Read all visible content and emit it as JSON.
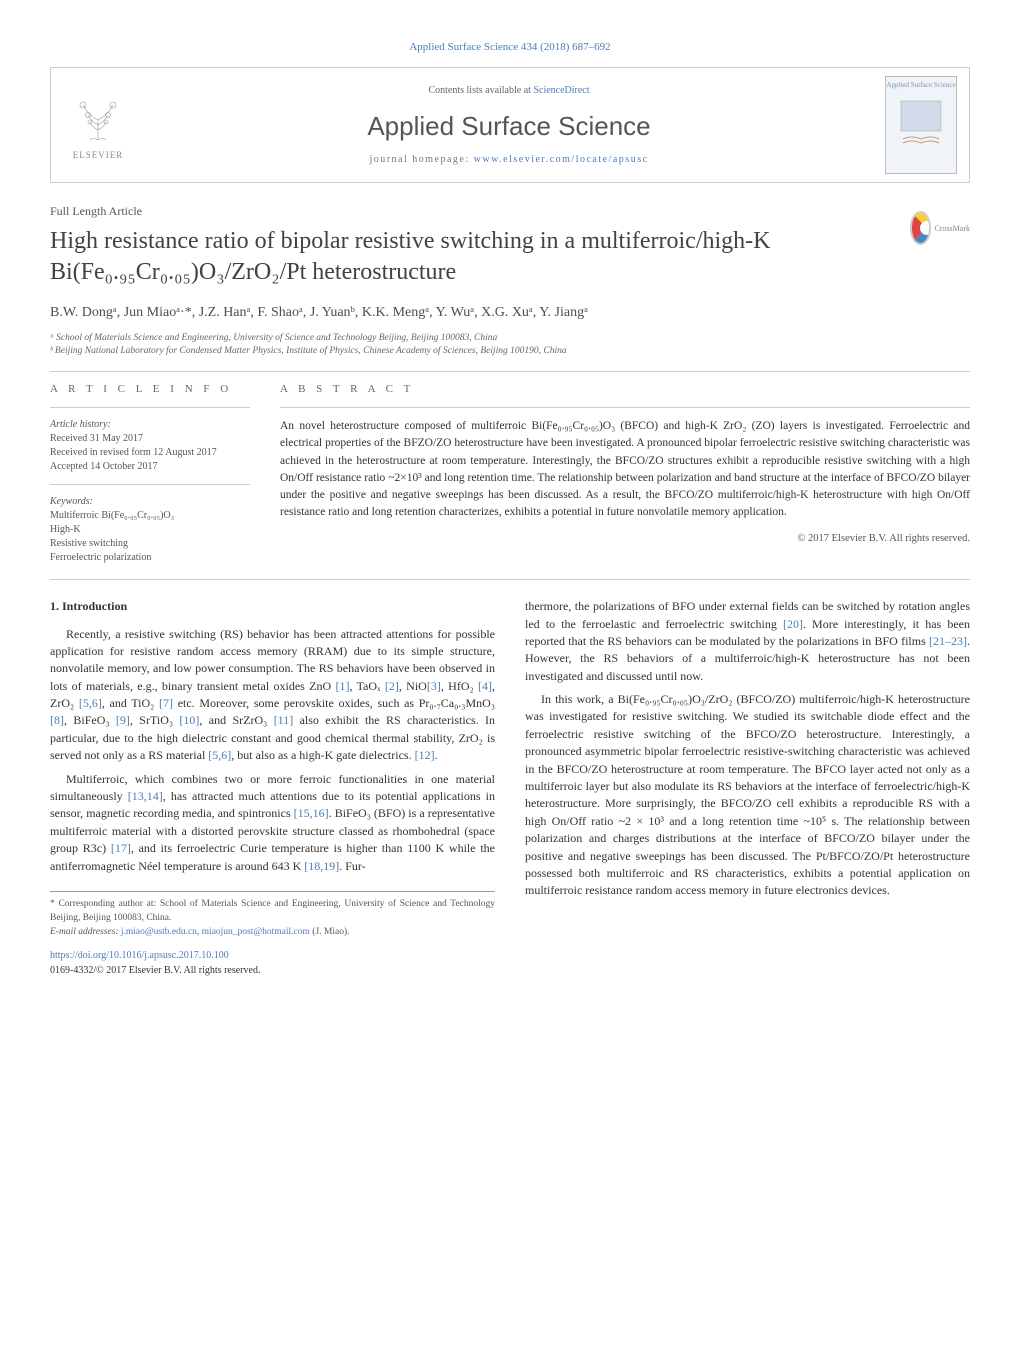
{
  "header": {
    "citation": "Applied Surface Science 434 (2018) 687–692",
    "contents_line": "Contents lists available at",
    "contents_link": "ScienceDirect",
    "journal_name": "Applied Surface Science",
    "homepage_label": "journal homepage:",
    "homepage_url": "www.elsevier.com/locate/apsusc",
    "publisher_name": "ELSEVIER",
    "cover_title": "Applied Surface Science",
    "crossmark_label": "CrossMark"
  },
  "article_type": "Full Length Article",
  "title": "High resistance ratio of bipolar resistive switching in a multiferroic/high-K Bi(Fe₀.₉₅Cr₀.₀₅)O₃/ZrO₂/Pt heterostructure",
  "authors_line": "B.W. Dongᵃ, Jun Miaoᵃ·*, J.Z. Hanᵃ, F. Shaoᵃ, J. Yuanᵇ, K.K. Mengᵃ, Y. Wuᵃ, X.G. Xuᵃ, Y. Jiangᵃ",
  "affiliations": {
    "a": "ᵃ School of Materials Science and Engineering, University of Science and Technology Beijing, Beijing 100083, China",
    "b": "ᵇ Beijing National Laboratory for Condensed Matter Physics, Institute of Physics, Chinese Academy of Sciences, Beijing 100190, China"
  },
  "article_info": {
    "heading": "A R T I C L E   I N F O",
    "history_label": "Article history:",
    "received": "Received 31 May 2017",
    "revised": "Received in revised form 12 August 2017",
    "accepted": "Accepted 14 October 2017",
    "keywords_label": "Keywords:",
    "keywords": [
      "Multiferroic Bi(Fe₀.₉₅Cr₀.₀₅)O₃",
      "High-K",
      "Resistive switching",
      "Ferroelectric polarization"
    ]
  },
  "abstract": {
    "heading": "A B S T R A C T",
    "text": "An novel heterostructure composed of multiferroic Bi(Fe₀.₉₅Cr₀.₀₅)O₃ (BFCO) and high-K ZrO₂ (ZO) layers is investigated. Ferroelectric and electrical properties of the BFZO/ZO heterostructure have been investigated. A pronounced bipolar ferroelectric resistive switching characteristic was achieved in the heterostructure at room temperature. Interestingly, the BFCO/ZO structures exhibit a reproducible resistive switching with a high On/Off resistance ratio ~2×10³ and long retention time. The relationship between polarization and band structure at the interface of BFCO/ZO bilayer under the positive and negative sweepings has been discussed. As a result, the BFCO/ZO multiferroic/high-K heterostructure with high On/Off resistance ratio and long retention characterizes, exhibits a potential in future nonvolatile memory application.",
    "copyright": "© 2017 Elsevier B.V. All rights reserved."
  },
  "section1": {
    "heading": "1. Introduction",
    "p1": "Recently, a resistive switching (RS) behavior has been attracted attentions for possible application for resistive random access memory (RRAM) due to its simple structure, nonvolatile memory, and low power consumption. The RS behaviors have been observed in lots of materials, e.g., binary transient metal oxides ZnO [1], TaOₓ [2], NiO[3], HfO₂ [4], ZrO₂ [5,6], and TiO₂ [7] etc. Moreover, some perovskite oxides, such as Pr₀.₇Ca₀.₃MnO₃ [8], BiFeO₃ [9], SrTiO₃ [10], and SrZrO₃ [11] also exhibit the RS characteristics. In particular, due to the high dielectric constant and good chemical thermal stability, ZrO₂ is served not only as a RS material [5,6], but also as a high-K gate dielectrics. [12].",
    "p2": "Multiferroic, which combines two or more ferroic functionalities in one material simultaneously [13,14], has attracted much attentions due to its potential applications in sensor, magnetic recording media, and spintronics [15,16]. BiFeO₃ (BFO) is a representative multiferroic material with a distorted perovskite structure classed as rhombohedral (space group R3c) [17], and its ferroelectric Curie temperature is higher than 1100 K while the antiferromagnetic Néel temperature is around 643 K [18,19]. Fur-",
    "p3": "thermore, the polarizations of BFO under external fields can be switched by rotation angles led to the ferroelastic and ferroelectric switching [20]. More interestingly, it has been reported that the RS behaviors can be modulated by the polarizations in BFO films [21–23]. However, the RS behaviors of a multiferroic/high-K heterostructure has not been investigated and discussed until now.",
    "p4": "In this work, a Bi(Fe₀.₉₅Cr₀.₀₅)O₃/ZrO₂ (BFCO/ZO) multiferroic/high-K heterostructure was investigated for resistive switching. We studied its switchable diode effect and the ferroelectric resistive switching of the BFCO/ZO heterostructure. Interestingly, a pronounced asymmetric bipolar ferroelectric resistive-switching characteristic was achieved in the BFCO/ZO heterostructure at room temperature. The BFCO layer acted not only as a multiferroic layer but also modulate its RS behaviors at the interface of ferroelectric/high-K heterostructure. More surprisingly, the BFCO/ZO cell exhibits a reproducible RS with a high On/Off ratio ~2 × 10³ and a long retention time ~10⁵ s. The relationship between polarization and charges distributions at the interface of BFCO/ZO bilayer under the positive and negative sweepings has been discussed. The Pt/BFCO/ZO/Pt heterostructure possessed both multiferroic and RS characteristics, exhibits a potential application on multiferroic resistance random access memory in future electronics devices."
  },
  "footnote": {
    "corresponding": "* Corresponding author at: School of Materials Science and Engineering, University of Science and Technology Beijing, Beijing 100083, China.",
    "email_label": "E-mail addresses:",
    "email1": "j.miao@ustb.edu.cn",
    "email2": "miaojun_post@hotmail.com",
    "email_name": "(J. Miao)."
  },
  "doi": {
    "url": "https://doi.org/10.1016/j.apsusc.2017.10.100",
    "issn_line": "0169-4332/© 2017 Elsevier B.V. All rights reserved."
  },
  "colors": {
    "link": "#4a7db8",
    "text": "#333333",
    "muted": "#666666",
    "border": "#cccccc",
    "elsevier_orange": "#e9711c"
  }
}
